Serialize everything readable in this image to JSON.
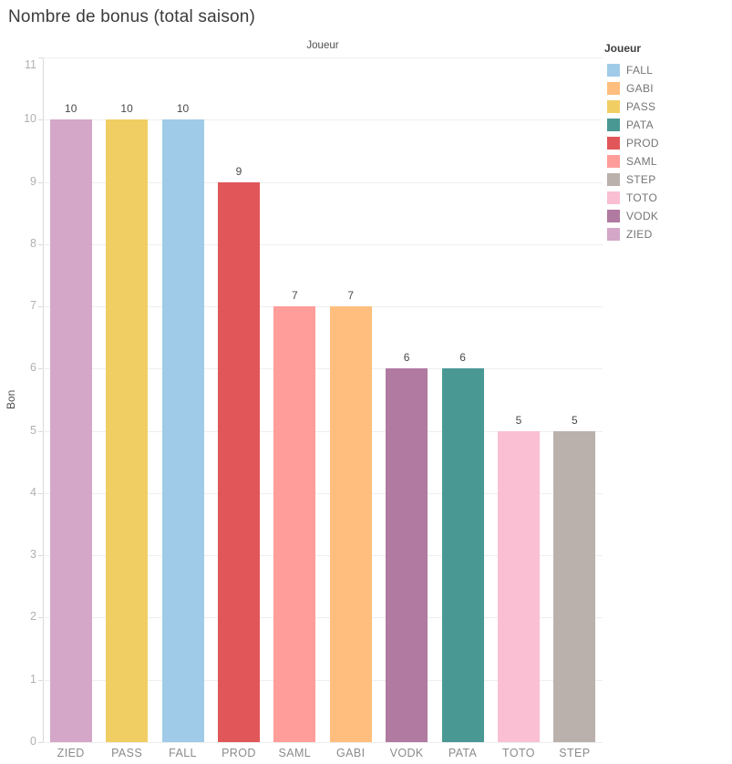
{
  "page": {
    "background": "#ffffff"
  },
  "chart_data": {
    "type": "bar",
    "title": "Nombre de bonus (total saison)",
    "x_axis_title": "Joueur",
    "y_axis_title": "Bon",
    "categories": [
      "ZIED",
      "PASS",
      "FALL",
      "PROD",
      "SAML",
      "GABI",
      "VODK",
      "PATA",
      "TOTO",
      "STEP"
    ],
    "values": [
      10,
      10,
      10,
      9,
      7,
      7,
      6,
      6,
      5,
      5
    ],
    "ylim": [
      0,
      11
    ],
    "yticks": [
      0,
      1,
      2,
      3,
      4,
      5,
      6,
      7,
      8,
      9,
      10,
      11
    ],
    "grid": true,
    "bar_labels_shown": true,
    "colors": {
      "gridline": "#eeeeee",
      "axis_line": "#d9d9d9",
      "y_tick_label": "#b0b0b0",
      "x_tick_label": "#8b8b8b",
      "value_label": "#4a4a4a",
      "title_text": "#3b3b3b"
    },
    "legend": {
      "title": "Joueur",
      "position": "right",
      "entries": [
        {
          "label": "FALL",
          "color": "#A0CBE8"
        },
        {
          "label": "GABI",
          "color": "#FFBE7D"
        },
        {
          "label": "PASS",
          "color": "#F1CE63"
        },
        {
          "label": "PATA",
          "color": "#499894"
        },
        {
          "label": "PROD",
          "color": "#E15759"
        },
        {
          "label": "SAML",
          "color": "#FF9D9A"
        },
        {
          "label": "STEP",
          "color": "#BAB0AC"
        },
        {
          "label": "TOTO",
          "color": "#FABFD2"
        },
        {
          "label": "VODK",
          "color": "#B07AA1"
        },
        {
          "label": "ZIED",
          "color": "#D4A6C8"
        }
      ]
    }
  }
}
